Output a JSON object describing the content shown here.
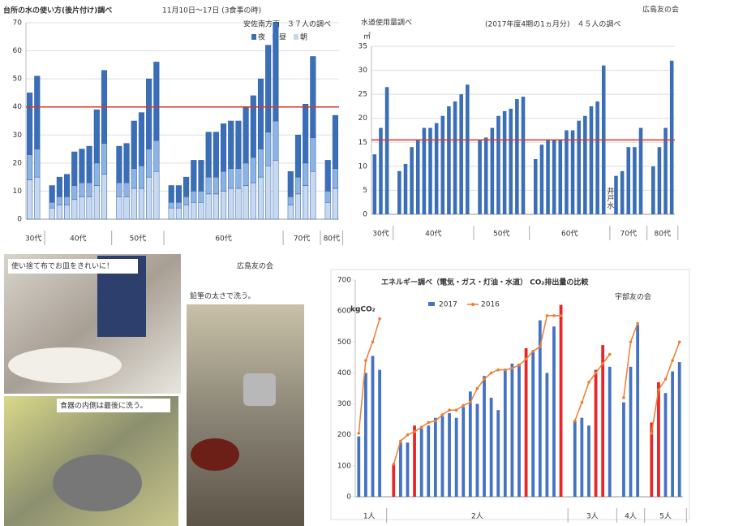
{
  "chart_data": [
    {
      "type": "bar",
      "stacked": true,
      "title": "台所の水の使い方(後片付け)調べ",
      "subtitle": "11月10日〜17日 (3食事の時)",
      "annotation": "安佐南方面　３７人の調べ",
      "series": [
        {
          "name": "朝",
          "color": "#c6d9f0",
          "values": [
            14,
            15,
            null,
            4,
            5,
            5,
            7,
            8,
            8,
            12,
            16,
            null,
            8,
            8,
            11,
            11,
            15,
            17,
            null,
            4,
            4,
            5,
            6,
            6,
            9,
            9,
            10,
            11,
            11,
            12,
            13,
            15,
            19,
            21,
            null,
            5,
            9,
            12,
            17,
            null,
            6,
            11
          ]
        },
        {
          "name": "昼",
          "color": "#8db3e2",
          "values": [
            9,
            10,
            null,
            2,
            3,
            3,
            5,
            5,
            5,
            8,
            11,
            null,
            5,
            5,
            7,
            8,
            10,
            11,
            null,
            2,
            2,
            3,
            4,
            4,
            6,
            6,
            7,
            7,
            7,
            8,
            9,
            10,
            12,
            14,
            null,
            3,
            6,
            8,
            12,
            null,
            4,
            7
          ]
        },
        {
          "name": "夜",
          "color": "#3a6fb7",
          "values": [
            22,
            26,
            null,
            6,
            7,
            8,
            12,
            12,
            13,
            19,
            26,
            null,
            13,
            14,
            17,
            19,
            25,
            28,
            null,
            6,
            6,
            7,
            11,
            11,
            16,
            16,
            17,
            17,
            17,
            20,
            22,
            25,
            31,
            35,
            null,
            9,
            15,
            21,
            29,
            null,
            11,
            19
          ]
        }
      ],
      "group_labels": [
        "30代",
        "40代",
        "50代",
        "60代",
        "70代",
        "80代"
      ],
      "ylim": [
        0,
        70
      ],
      "yticks": [
        0,
        10,
        20,
        30,
        40,
        50,
        60,
        70
      ],
      "reference_line": 40,
      "reference_color": "#d9362b",
      "grid": true
    },
    {
      "type": "bar",
      "title": "水道使用量調べ",
      "subtitle": "(2017年度4期の1ヵ月分)　４５人の調べ",
      "y_unit": "㎥",
      "annotation": "井戸水",
      "color": "#3a6fb7",
      "values": [
        12.5,
        18,
        26.5,
        null,
        9,
        10.5,
        14,
        15.5,
        18,
        18,
        19,
        20.5,
        22.5,
        23.5,
        25,
        27,
        null,
        15.5,
        16,
        18,
        20.5,
        21.5,
        22,
        24,
        24.5,
        null,
        11.5,
        14.5,
        15.5,
        15.5,
        15.5,
        17.5,
        17.5,
        19.5,
        20.5,
        22.5,
        23.5,
        31,
        null,
        8,
        9,
        14,
        14,
        18,
        null,
        10,
        14,
        18,
        32
      ],
      "group_labels": [
        "30代",
        "40代",
        "50代",
        "60代",
        "70代",
        "80代"
      ],
      "ylim": [
        0,
        35
      ],
      "yticks": [
        0,
        5,
        10,
        15,
        20,
        25,
        30,
        35
      ],
      "reference_line": 15.5,
      "reference_color": "#d9362b",
      "grid": true
    },
    {
      "type": "combo",
      "title": "エネルギー調べ（電気・ガス・灯油・水道） CO₂排出量の比較",
      "y_label": "kgCO₂",
      "series": [
        {
          "name": "2017",
          "type": "bar",
          "color": "#4472c4",
          "values": [
            195,
            400,
            455,
            410,
            null,
            105,
            175,
            175,
            230,
            220,
            230,
            255,
            260,
            270,
            255,
            290,
            340,
            300,
            390,
            320,
            280,
            410,
            430,
            430,
            480,
            470,
            570,
            400,
            550,
            620,
            null,
            245,
            255,
            230,
            410,
            490,
            420,
            null,
            305,
            420,
            555,
            null,
            240,
            370,
            335,
            405,
            435
          ],
          "colors": [
            "#4472c4",
            "#4472c4",
            "#4472c4",
            "#4472c4",
            null,
            "#e8262a",
            "#4472c4",
            "#4472c4",
            "#e8262a",
            "#4472c4",
            "#4472c4",
            "#4472c4",
            "#4472c4",
            "#4472c4",
            "#4472c4",
            "#4472c4",
            "#4472c4",
            "#4472c4",
            "#4472c4",
            "#4472c4",
            "#4472c4",
            "#4472c4",
            "#4472c4",
            "#4472c4",
            "#e8262a",
            "#4472c4",
            "#4472c4",
            "#4472c4",
            "#4472c4",
            "#e8262a",
            null,
            "#4472c4",
            "#4472c4",
            "#4472c4",
            "#e8262a",
            "#e8262a",
            "#4472c4",
            null,
            "#4472c4",
            "#4472c4",
            "#4472c4",
            null,
            "#e8262a",
            "#e8262a",
            "#4472c4",
            "#4472c4",
            "#4472c4"
          ]
        },
        {
          "name": "2016",
          "type": "line",
          "color": "#ed7d31",
          "values": [
            205,
            440,
            500,
            575,
            null,
            105,
            180,
            200,
            210,
            225,
            240,
            245,
            265,
            280,
            280,
            295,
            305,
            350,
            380,
            400,
            410,
            410,
            415,
            425,
            445,
            470,
            485,
            585,
            585,
            585,
            null,
            245,
            305,
            370,
            400,
            430,
            460,
            null,
            320,
            500,
            560,
            null,
            205,
            345,
            380,
            440,
            500
          ]
        }
      ],
      "group_labels": [
        "1人",
        "2人",
        "3人",
        "4人",
        "5人"
      ],
      "ylim": [
        0,
        700
      ],
      "yticks": [
        0,
        100,
        200,
        300,
        400,
        500,
        600,
        700
      ],
      "grid": false
    }
  ],
  "credits": [
    "広島友の会",
    "広島友の会",
    "宇部友の会"
  ],
  "photos": [
    {
      "caption": "使い捨て布でお皿をきれいに！"
    },
    {
      "caption": "鉛筆の太さで洗う。"
    },
    {
      "caption": "食器の内側は最後に洗う。"
    }
  ]
}
